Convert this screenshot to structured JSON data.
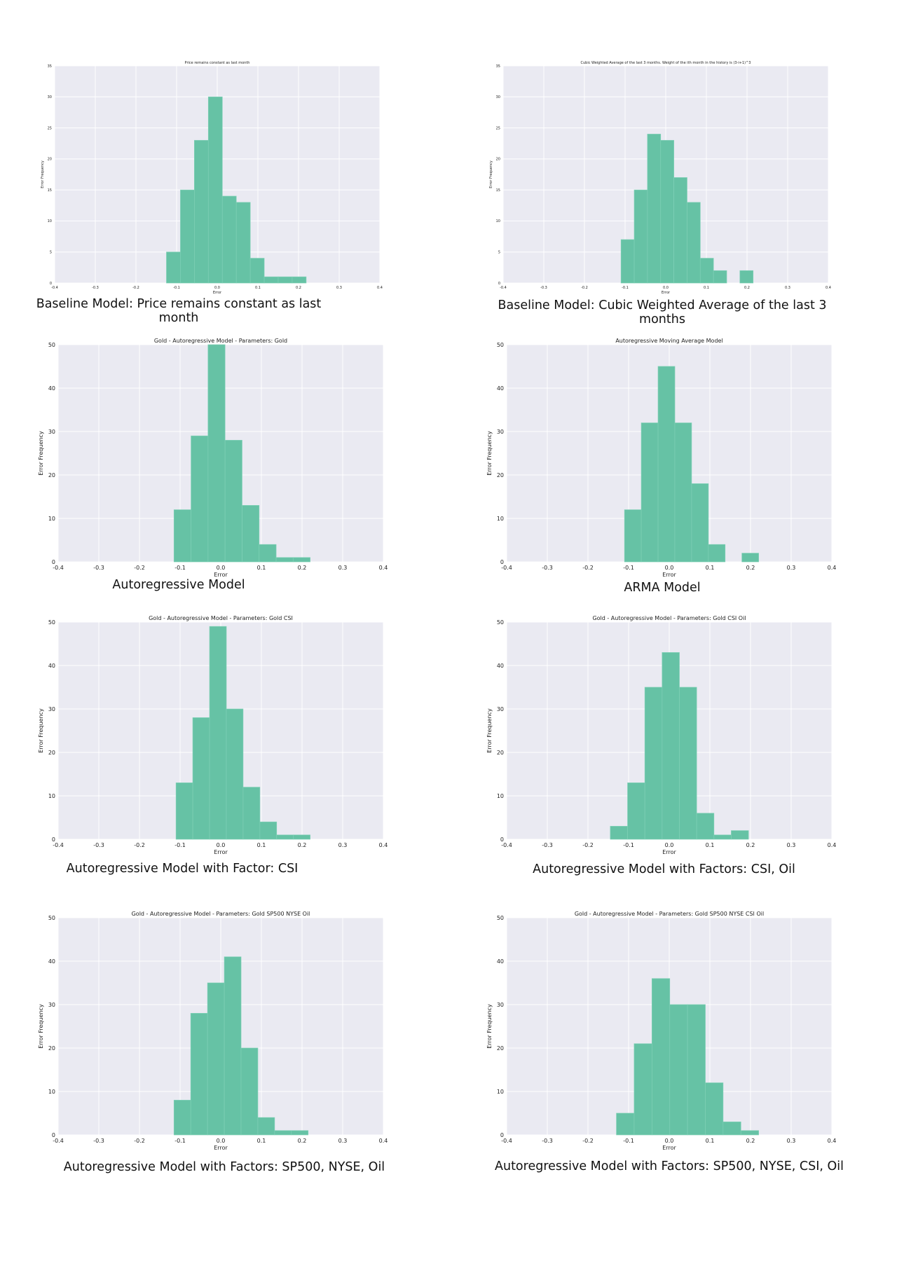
{
  "chart_data": [
    {
      "type": "bar",
      "title": "Price remains constant as last month",
      "xlabel": "Error",
      "ylabel": "Error Frequency",
      "xlim": [
        -0.4,
        0.4
      ],
      "ylim": [
        0,
        35
      ],
      "xticks": [
        "-0.4",
        "-0.3",
        "-0.2",
        "-0.1",
        "0.0",
        "0.1",
        "0.2",
        "0.3",
        "0.4"
      ],
      "yticks": [
        "0",
        "5",
        "10",
        "15",
        "20",
        "25",
        "30",
        "35"
      ],
      "bin_edges": [
        -0.125,
        -0.0906,
        -0.0563,
        -0.0219,
        0.0125,
        0.0469,
        0.0813,
        0.1156,
        0.15,
        0.1844,
        0.2188
      ],
      "values": [
        5,
        15,
        23,
        30,
        14,
        13,
        4,
        1,
        1,
        1
      ],
      "caption": "Baseline Model: Price remains constant as last month"
    },
    {
      "type": "bar",
      "title": "Cubic Weighted Average of the last 3 months. Weight of the ith month in the history is (3-i+1)^3",
      "xlabel": "Error",
      "ylabel": "Error Frequency",
      "xlim": [
        -0.4,
        0.4
      ],
      "ylim": [
        0,
        35
      ],
      "xticks": [
        "-0.4",
        "-0.3",
        "-0.2",
        "-0.1",
        "0.0",
        "0.1",
        "0.2",
        "0.3",
        "0.4"
      ],
      "yticks": [
        "0",
        "5",
        "10",
        "15",
        "20",
        "25",
        "30",
        "35"
      ],
      "bin_edges": [
        -0.11,
        -0.0775,
        -0.045,
        -0.0125,
        0.02,
        0.0525,
        0.085,
        0.1175,
        0.15,
        0.1825,
        0.215
      ],
      "values": [
        7,
        15,
        24,
        23,
        17,
        13,
        4,
        2,
        0,
        2
      ],
      "caption": "Baseline Model: Cubic Weighted Average of the last 3 months"
    },
    {
      "type": "bar",
      "title": "Gold - Autoregressive Model - Parameters: Gold",
      "xlabel": "Error",
      "ylabel": "Error Frequency",
      "xlim": [
        -0.4,
        0.4
      ],
      "ylim": [
        0,
        50
      ],
      "xticks": [
        "-0.4",
        "-0.3",
        "-0.2",
        "-0.1",
        "0.0",
        "0.1",
        "0.2",
        "0.3",
        "0.4"
      ],
      "yticks": [
        "0",
        "10",
        "20",
        "30",
        "40",
        "50"
      ],
      "bin_edges": [
        -0.115,
        -0.0731,
        -0.0313,
        0.0106,
        0.0525,
        0.0944,
        0.1363,
        0.1781,
        0.22
      ],
      "values": [
        12,
        29,
        50,
        28,
        13,
        4,
        1,
        1
      ],
      "caption": "Autoregressive Model"
    },
    {
      "type": "bar",
      "title": "Autoregressive Moving Average Model",
      "xlabel": "Error",
      "ylabel": "Error Frequency",
      "xlim": [
        -0.4,
        0.4
      ],
      "ylim": [
        0,
        50
      ],
      "xticks": [
        "-0.4",
        "-0.3",
        "-0.2",
        "-0.1",
        "0.0",
        "0.1",
        "0.2",
        "0.3",
        "0.4"
      ],
      "yticks": [
        "0",
        "10",
        "20",
        "30",
        "40",
        "50"
      ],
      "bin_edges": [
        -0.11,
        -0.0688,
        -0.0275,
        0.0138,
        0.055,
        0.0963,
        0.1375,
        0.1788,
        0.22
      ],
      "values": [
        12,
        32,
        45,
        32,
        18,
        4,
        0,
        2
      ],
      "caption": "ARMA Model"
    },
    {
      "type": "bar",
      "title": "Gold - Autoregressive Model - Parameters: Gold CSI",
      "xlabel": "Error",
      "ylabel": "Error Frequency",
      "xlim": [
        -0.4,
        0.4
      ],
      "ylim": [
        0,
        50
      ],
      "xticks": [
        "-0.4",
        "-0.3",
        "-0.2",
        "-0.1",
        "0.0",
        "0.1",
        "0.2",
        "0.3",
        "0.4"
      ],
      "yticks": [
        "0",
        "10",
        "20",
        "30",
        "40",
        "50"
      ],
      "bin_edges": [
        -0.11,
        -0.0688,
        -0.0275,
        0.0138,
        0.055,
        0.0963,
        0.1375,
        0.1788,
        0.22
      ],
      "values": [
        13,
        28,
        49,
        30,
        12,
        4,
        1,
        1
      ],
      "caption": "Autoregressive Model with Factor: CSI"
    },
    {
      "type": "bar",
      "title": "Gold - Autoregressive Model - Parameters: Gold CSI Oil",
      "xlabel": "Error",
      "ylabel": "Error Frequency",
      "xlim": [
        -0.4,
        0.4
      ],
      "ylim": [
        0,
        50
      ],
      "xticks": [
        "-0.4",
        "-0.3",
        "-0.2",
        "-0.1",
        "0.0",
        "0.1",
        "0.2",
        "0.3",
        "0.4"
      ],
      "yticks": [
        "0",
        "10",
        "20",
        "30",
        "40",
        "50"
      ],
      "bin_edges": [
        -0.145,
        -0.1025,
        -0.06,
        -0.0175,
        0.025,
        0.0675,
        0.11,
        0.1525,
        0.195
      ],
      "values": [
        3,
        13,
        35,
        43,
        35,
        6,
        1,
        2
      ],
      "caption": "Autoregressive Model with Factors: CSI, Oil"
    },
    {
      "type": "bar",
      "title": "Gold - Autoregressive Model - Parameters: Gold SP500 NYSE Oil",
      "xlabel": "Error",
      "ylabel": "Error Frequency",
      "xlim": [
        -0.4,
        0.4
      ],
      "ylim": [
        0,
        50
      ],
      "xticks": [
        "-0.4",
        "-0.3",
        "-0.2",
        "-0.1",
        "0.0",
        "0.1",
        "0.2",
        "0.3",
        "0.4"
      ],
      "yticks": [
        "0",
        "10",
        "20",
        "30",
        "40",
        "50"
      ],
      "bin_edges": [
        -0.115,
        -0.0738,
        -0.0325,
        0.0088,
        0.05,
        0.0913,
        0.1325,
        0.1738,
        0.215
      ],
      "values": [
        8,
        28,
        35,
        41,
        20,
        4,
        1,
        1
      ],
      "caption": "Autoregressive Model with Factors: SP500, NYSE, Oil"
    },
    {
      "type": "bar",
      "title": "Gold - Autoregressive Model - Parameters: Gold SP500 NYSE CSI Oil",
      "xlabel": "Error",
      "ylabel": "Error Frequency",
      "xlim": [
        -0.4,
        0.4
      ],
      "ylim": [
        0,
        50
      ],
      "xticks": [
        "-0.4",
        "-0.3",
        "-0.2",
        "-0.1",
        "0.0",
        "0.1",
        "0.2",
        "0.3",
        "0.4"
      ],
      "yticks": [
        "0",
        "10",
        "20",
        "30",
        "40",
        "50"
      ],
      "bin_edges": [
        -0.13,
        -0.0863,
        -0.0425,
        0.0013,
        0.045,
        0.0888,
        0.1325,
        0.1763,
        0.22
      ],
      "values": [
        5,
        21,
        36,
        30,
        30,
        12,
        3,
        1
      ],
      "caption": "Autoregressive Model with Factors: SP500, NYSE, CSI, Oil"
    }
  ]
}
